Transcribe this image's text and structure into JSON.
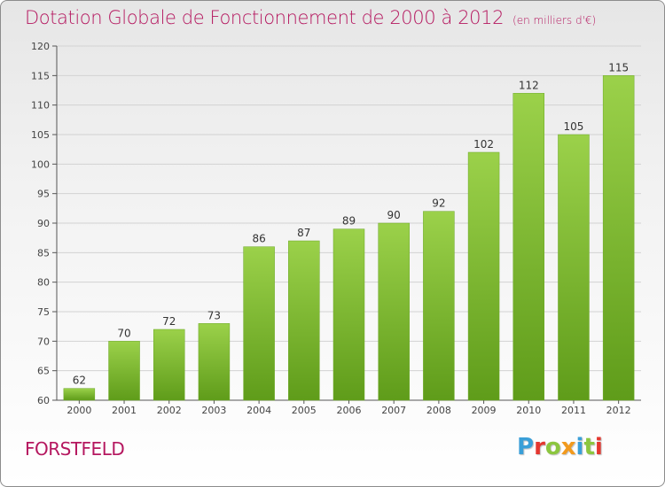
{
  "chart_data": {
    "type": "bar",
    "title": "Dotation Globale de Fonctionnement de 2000 à 2012",
    "unit": "(en milliers d'€)",
    "categories": [
      "2000",
      "2001",
      "2002",
      "2003",
      "2004",
      "2005",
      "2006",
      "2007",
      "2008",
      "2009",
      "2010",
      "2011",
      "2012"
    ],
    "values": [
      62,
      70,
      72,
      73,
      86,
      87,
      89,
      90,
      92,
      102,
      112,
      105,
      115
    ],
    "ylim": [
      60,
      120
    ],
    "yticks": [
      60,
      65,
      70,
      75,
      80,
      85,
      90,
      95,
      100,
      105,
      110,
      115,
      120
    ],
    "grid": true,
    "bar_color_top": "#9bd14a",
    "bar_color_bottom": "#5f9c1a"
  },
  "commune": "FORSTFELD",
  "logo": {
    "letters": [
      {
        "char": "P",
        "color": "#3a9fd8"
      },
      {
        "char": "r",
        "color": "#e4372f"
      },
      {
        "char": "o",
        "color": "#8cc63f"
      },
      {
        "char": "x",
        "color": "#f29a1d"
      },
      {
        "char": "i",
        "color": "#3a9fd8"
      },
      {
        "char": "t",
        "color": "#8cc63f"
      },
      {
        "char": "i",
        "color": "#e4372f"
      }
    ]
  }
}
